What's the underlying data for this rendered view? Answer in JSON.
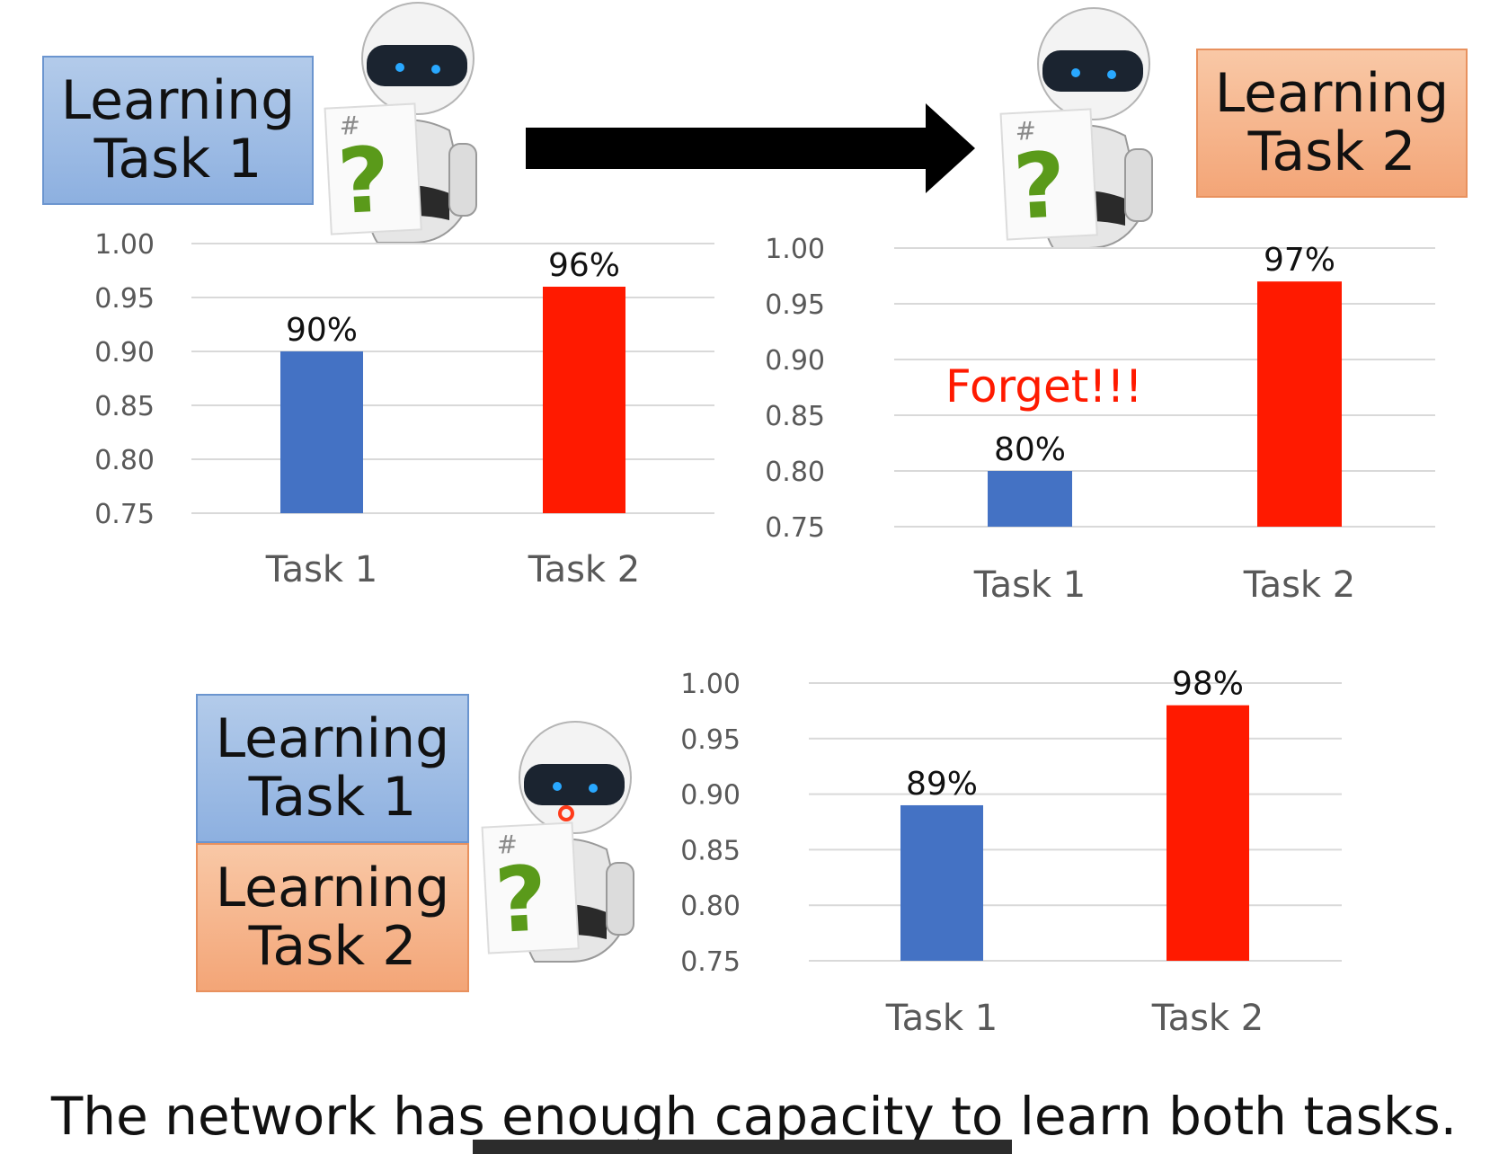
{
  "panels": {
    "top_left": {
      "boxes": [
        {
          "line1": "Learning",
          "line2": "Task 1"
        }
      ]
    },
    "top_right": {
      "boxes": [
        {
          "line1": "Learning",
          "line2": "Task 2"
        }
      ],
      "annotation": "Forget!!!"
    },
    "bottom": {
      "boxes": [
        {
          "line1": "Learning",
          "line2": "Task 1"
        },
        {
          "line1": "Learning",
          "line2": "Task 2"
        }
      ]
    }
  },
  "robot": {
    "sign_text": "?",
    "sign_mark": "#"
  },
  "caption": "The network has enough capacity to learn both tasks.",
  "colors": {
    "task1": "#4472c4",
    "task2": "#ff1a00",
    "box_blue": "#9dbbe4",
    "box_orange": "#f6b28a",
    "forget": "#ff1a00",
    "arrow": "#000000",
    "question": "#5a9a1a"
  },
  "chart_data": [
    {
      "type": "bar",
      "categories": [
        "Task 1",
        "Task 2"
      ],
      "values": [
        0.9,
        0.96
      ],
      "data_labels": [
        "90%",
        "96%"
      ],
      "yticks": [
        "1.00",
        "0.95",
        "0.90",
        "0.85",
        "0.80",
        "0.75"
      ],
      "ylim": [
        0.75,
        1.0
      ],
      "grid": true,
      "annotation": ""
    },
    {
      "type": "bar",
      "categories": [
        "Task 1",
        "Task 2"
      ],
      "values": [
        0.8,
        0.97
      ],
      "data_labels": [
        "80%",
        "97%"
      ],
      "yticks": [
        "1.00",
        "0.95",
        "0.90",
        "0.85",
        "0.80",
        "0.75"
      ],
      "ylim": [
        0.75,
        1.0
      ],
      "grid": true,
      "annotation": "Forget!!!"
    },
    {
      "type": "bar",
      "categories": [
        "Task 1",
        "Task 2"
      ],
      "values": [
        0.89,
        0.98
      ],
      "data_labels": [
        "89%",
        "98%"
      ],
      "yticks": [
        "1.00",
        "0.95",
        "0.90",
        "0.85",
        "0.80",
        "0.75"
      ],
      "ylim": [
        0.75,
        1.0
      ],
      "grid": true,
      "annotation": ""
    }
  ]
}
